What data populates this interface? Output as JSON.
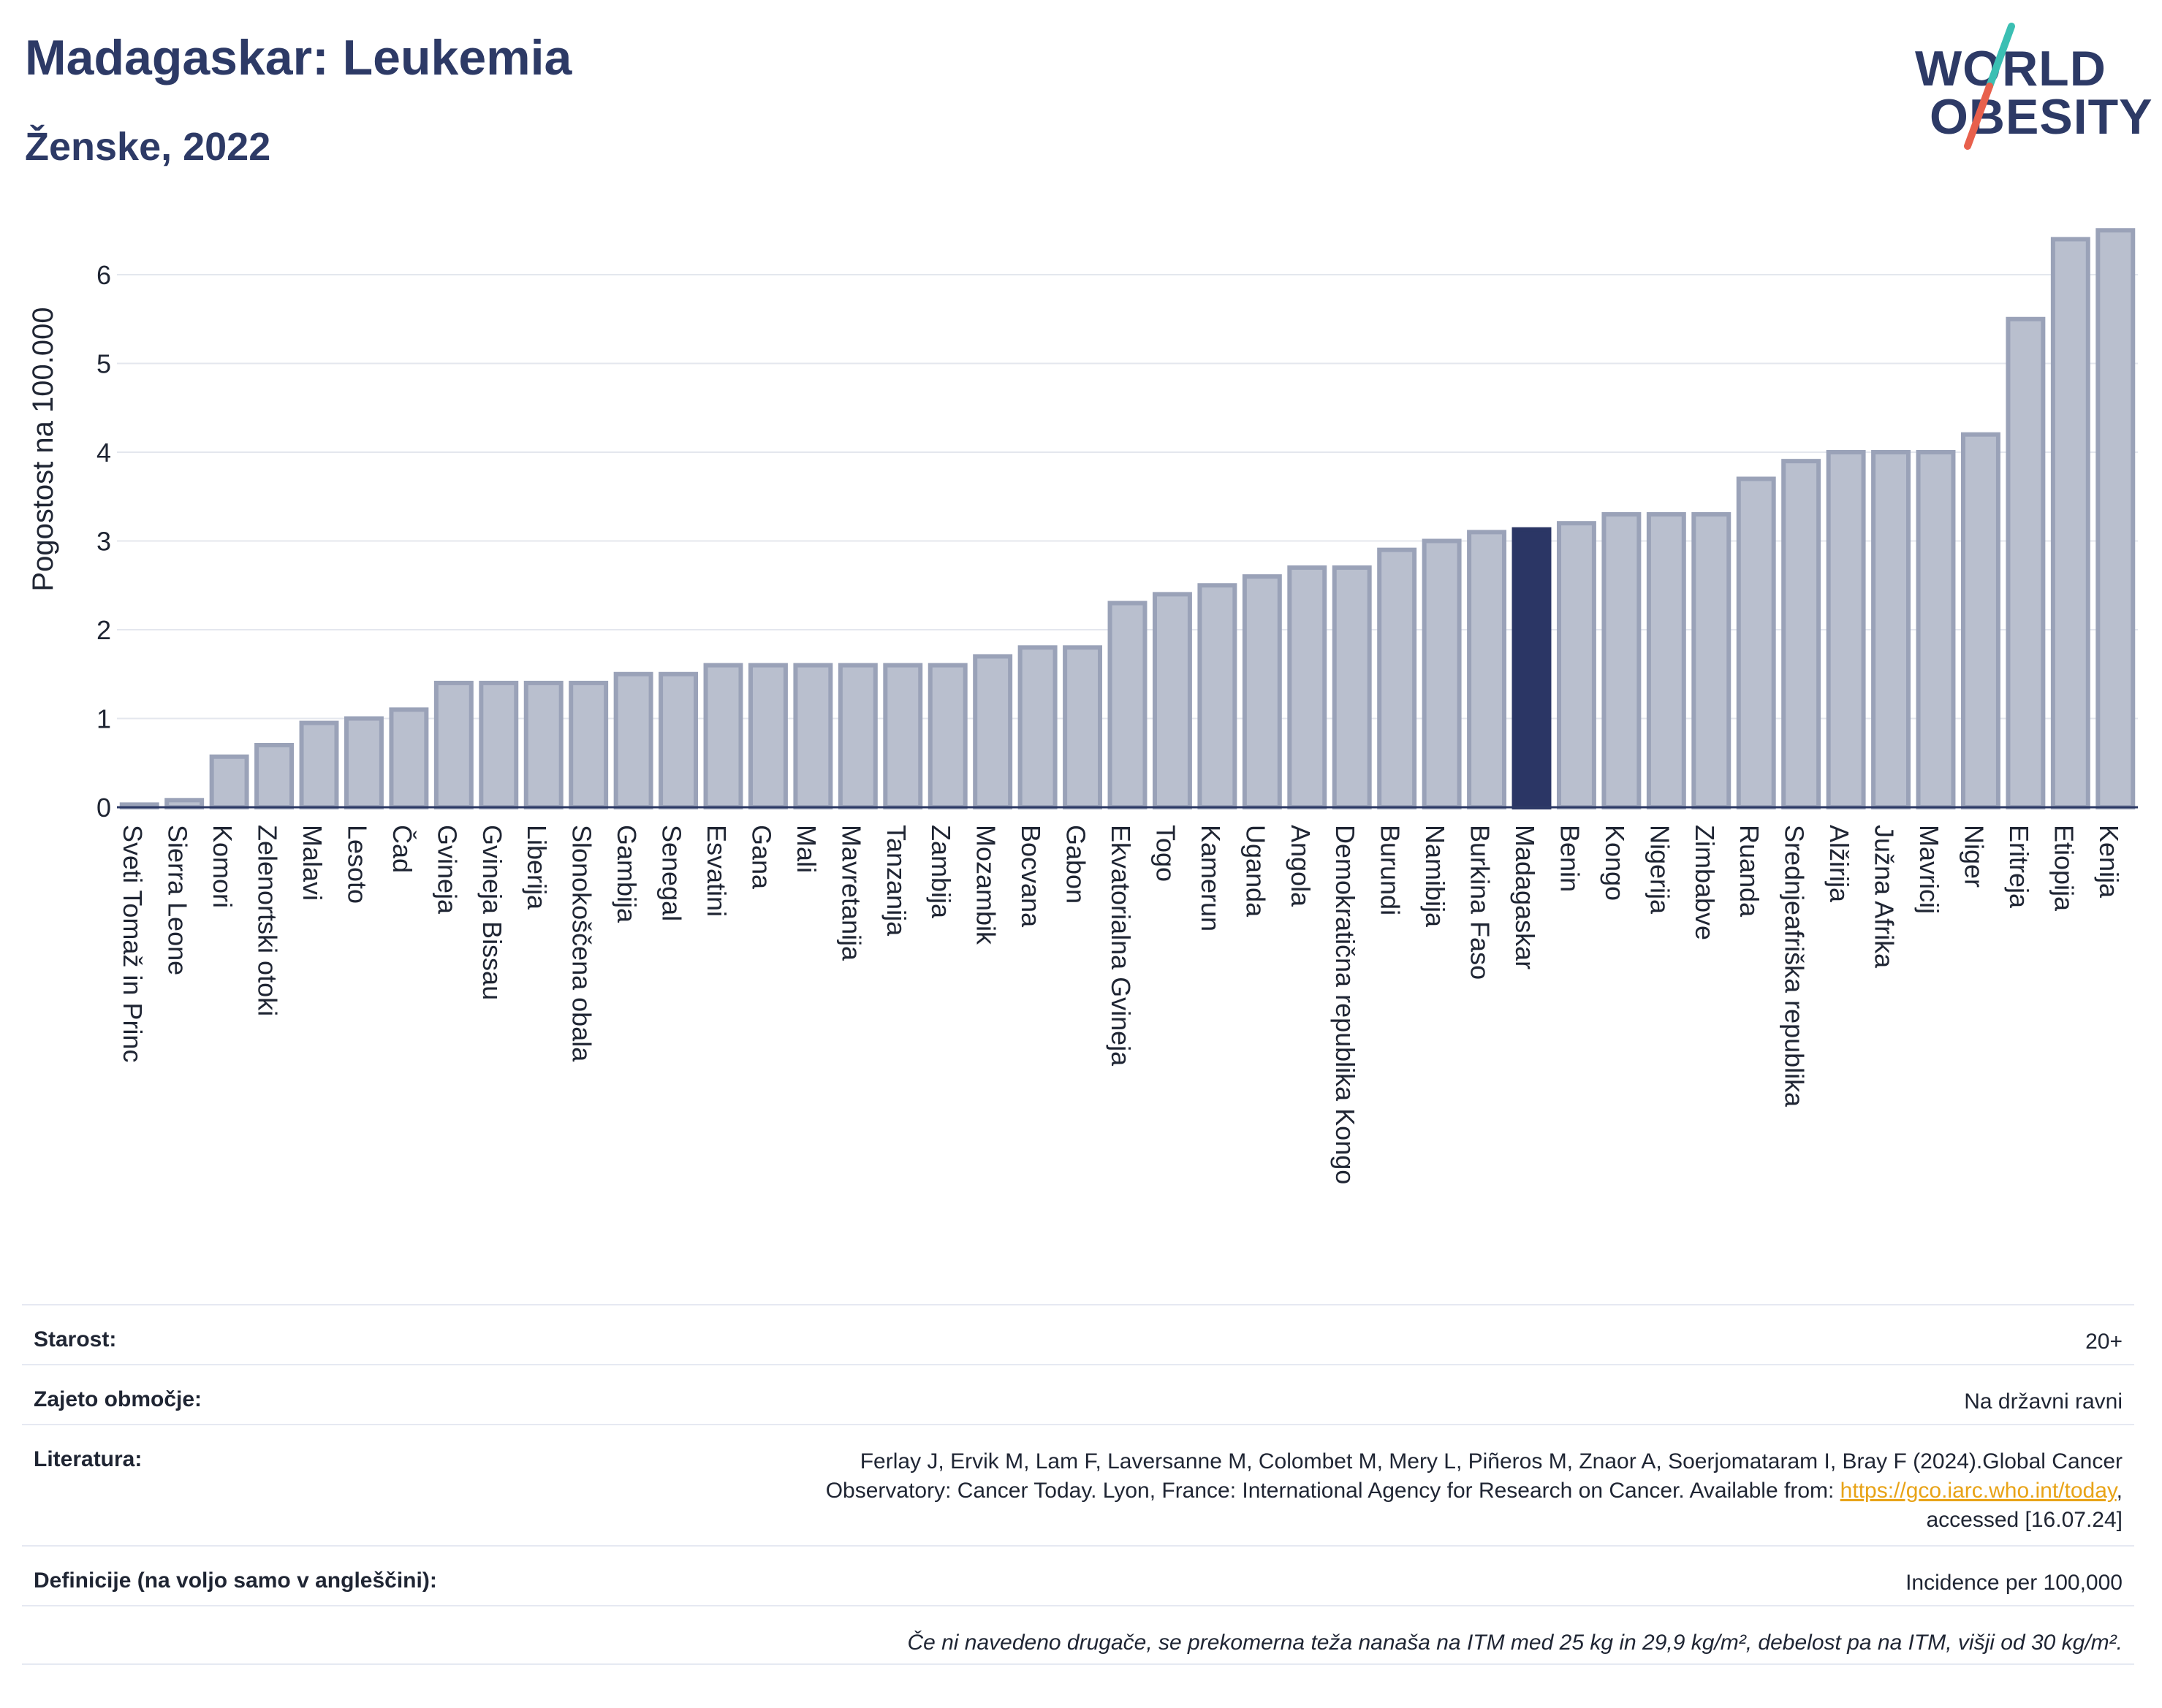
{
  "header": {
    "title": "Madagaskar: Leukemia",
    "subtitle": "Ženske, 2022"
  },
  "logo": {
    "line1": "WORLD",
    "line2": "OBESITY",
    "colors": {
      "text": "#2d3a66",
      "slash_top": "#3bbfb3",
      "slash_bottom": "#e8604c"
    }
  },
  "chart_data": {
    "type": "bar",
    "ylabel": "Pogostost na 100.000",
    "xlabel": "",
    "ylim": [
      0,
      6.6
    ],
    "yticks": [
      0,
      1,
      2,
      3,
      4,
      5,
      6
    ],
    "grid": true,
    "highlight": "Madagaskar",
    "colors": {
      "bar": "#b9bfce",
      "bar_edge": "#9aa2b8",
      "highlight": "#2b3665"
    },
    "categories": [
      "Sveti Tomaž in Princ",
      "Sierra Leone",
      "Komori",
      "Zelenortski otoki",
      "Malavi",
      "Lesoto",
      "Čad",
      "Gvineja",
      "Gvineja Bissau",
      "Liberija",
      "Slonokoščena obala",
      "Gambija",
      "Senegal",
      "Esvatini",
      "Gana",
      "Mali",
      "Mavretanija",
      "Tanzanija",
      "Zambija",
      "Mozambik",
      "Bocvana",
      "Gabon",
      "Ekvatorialna Gvineja",
      "Togo",
      "Kamerun",
      "Uganda",
      "Angola",
      "Demokratična republika Kongo",
      "Burundi",
      "Namibija",
      "Burkina Faso",
      "Madagaskar",
      "Benin",
      "Kongo",
      "Nigerija",
      "Zimbabve",
      "Ruanda",
      "Srednjeafriška republika",
      "Alžirija",
      "Južna Afrika",
      "Mavricij",
      "Niger",
      "Eritreja",
      "Etiopija",
      "Kenija"
    ],
    "values": [
      0.03,
      0.08,
      0.57,
      0.7,
      0.95,
      1.0,
      1.1,
      1.4,
      1.4,
      1.4,
      1.4,
      1.5,
      1.5,
      1.6,
      1.6,
      1.6,
      1.6,
      1.6,
      1.6,
      1.7,
      1.8,
      1.8,
      2.3,
      2.4,
      2.5,
      2.6,
      2.7,
      2.7,
      2.9,
      3.0,
      3.1,
      3.13,
      3.2,
      3.3,
      3.3,
      3.3,
      3.7,
      3.9,
      4.0,
      4.0,
      4.0,
      4.2,
      5.5,
      6.4,
      6.5
    ]
  },
  "meta": {
    "age_label": "Starost:",
    "age_value": "20+",
    "area_label": "Zajeto območje:",
    "area_value": "Na državni ravni",
    "lit_label": "Literatura:",
    "lit_text1": "Ferlay J, Ervik M, Lam F, Laversanne M, Colombet M, Mery L, Piñeros M, Znaor A, Soerjomataram I, Bray F (2024).Global Cancer",
    "lit_text2": "Observatory: Cancer Today. Lyon, France: International Agency for Research on Cancer. Available from: ",
    "lit_link": "https://gco.iarc.who.int/today",
    "lit_text3": ",",
    "lit_text4": "accessed [16.07.24]",
    "def_label": "Definicije (na voljo samo v angleščini):",
    "def_value": "Incidence per 100,000",
    "note": "Če ni navedeno drugače, se prekomerna teža nanaša na ITM med 25 kg in 29,9 kg/m², debelost pa na ITM, višji od 30 kg/m²."
  }
}
